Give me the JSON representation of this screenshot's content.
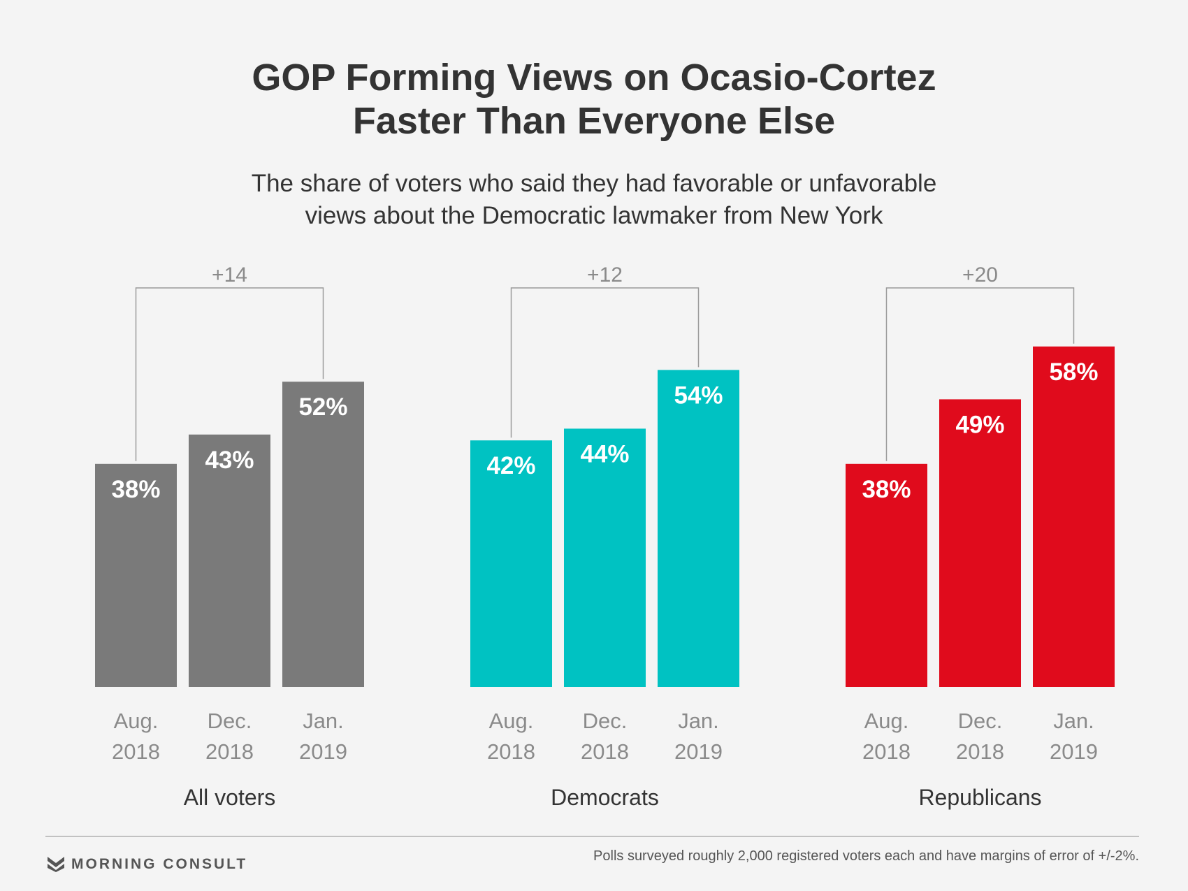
{
  "chart_data": {
    "type": "bar",
    "title": "GOP Forming Views on Ocasio-Cortez\nFaster Than Everyone Else",
    "subtitle": "The share of voters who said they had favorable or unfavorable\nviews about the Democratic lawmaker from New York",
    "categories": [
      "Aug.\n2018",
      "Dec.\n2018",
      "Jan.\n2019"
    ],
    "ylim": [
      0,
      60
    ],
    "value_suffix": "%",
    "groups": [
      {
        "name": "All voters",
        "values": [
          38,
          43,
          52
        ],
        "change": "+14",
        "color": "#7a7a7a"
      },
      {
        "name": "Democrats",
        "values": [
          42,
          44,
          54
        ],
        "change": "+12",
        "color": "#00c2c2"
      },
      {
        "name": "Republicans",
        "values": [
          38,
          49,
          58
        ],
        "change": "+20",
        "color": "#e00b1c"
      }
    ],
    "grid": false,
    "legend": "none"
  },
  "footer": {
    "brand": "MORNING CONSULT",
    "brand_icon": "morning-consult-logo-icon",
    "note": "Polls surveyed roughly 2,000 registered voters each and have margins of error of +/-2%."
  }
}
